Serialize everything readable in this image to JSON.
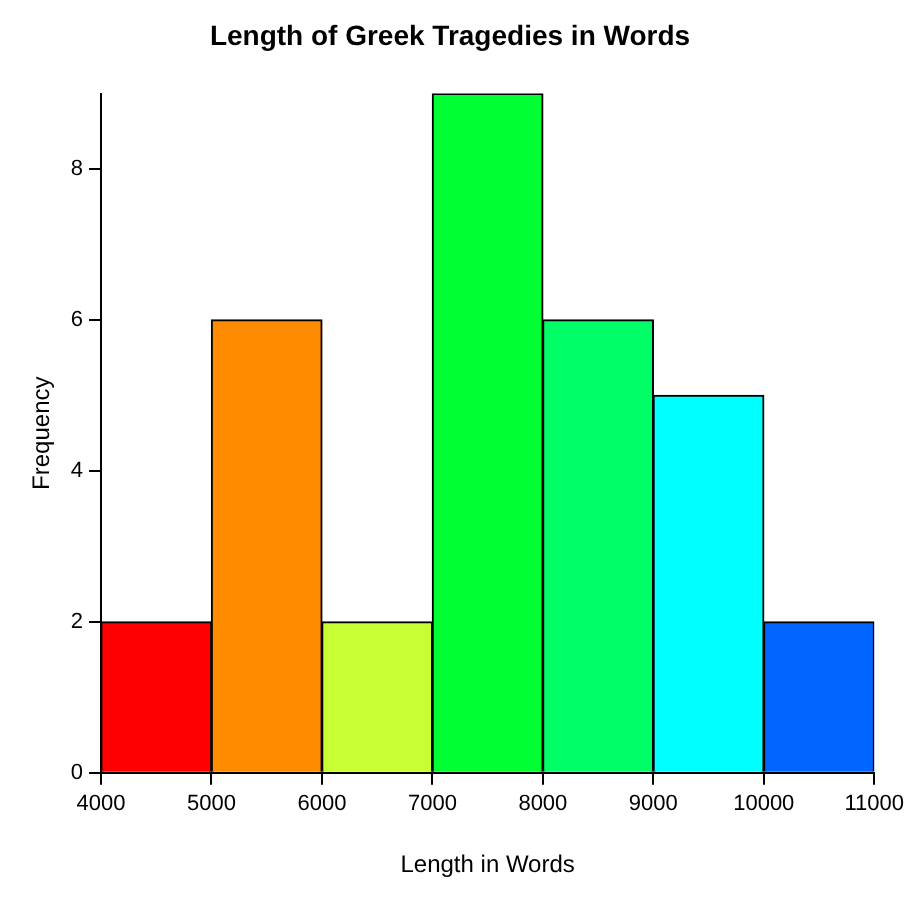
{
  "chart_data": {
    "type": "histogram",
    "title": "Length of Greek Tragedies in Words",
    "xlabel": "Length in Words",
    "ylabel": "Frequency",
    "bins": [
      4000,
      5000,
      6000,
      7000,
      8000,
      9000,
      10000,
      11000
    ],
    "values": [
      2,
      6,
      2,
      9,
      6,
      5,
      2
    ],
    "colors": [
      "#ff0000",
      "#ff8c00",
      "#c8ff32",
      "#00ff33",
      "#00ff66",
      "#00ffff",
      "#0066ff"
    ],
    "xlim": [
      4000,
      11000
    ],
    "xticks": [
      4000,
      5000,
      6000,
      7000,
      8000,
      9000,
      10000,
      11000
    ],
    "ylim": [
      0,
      9
    ],
    "yticks": [
      0,
      2,
      4,
      6,
      8
    ],
    "grid": false,
    "legend": false
  }
}
